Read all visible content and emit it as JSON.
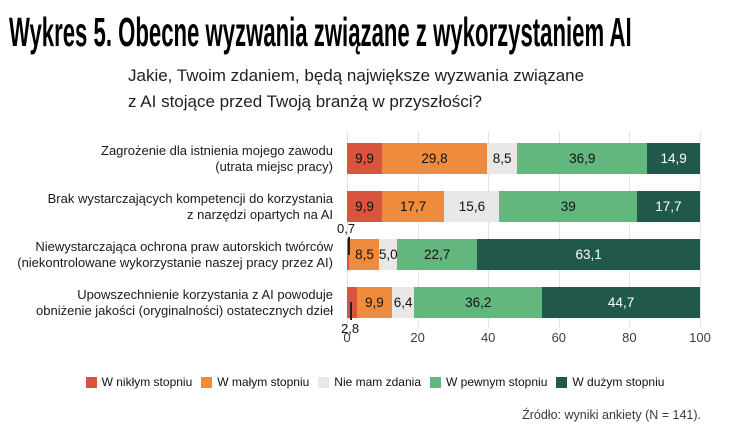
{
  "header": {
    "title": "Wykres 5. Obecne wyzwania związane z wykorzystaniem AI",
    "subtitle_line1": "Jakie, Twoim zdaniem, będą największe wyzwania związane",
    "subtitle_line2": "z AI stojące przed Twoją branżą w przyszłości?"
  },
  "chart_data": {
    "type": "bar",
    "variant": "horizontal-stacked-100-percent",
    "unit": "percent",
    "grid": true,
    "legend_position": "bottom",
    "x_axis": {
      "range": [
        0,
        100
      ],
      "ticks": [
        "0",
        "20",
        "40",
        "60",
        "80",
        "100"
      ]
    },
    "legend": [
      "W nikłym stopniu",
      "W małym stopniu",
      "Nie mam zdania",
      "W pewnym stopniu",
      "W dużym stopniu"
    ],
    "series_colors": [
      "#D8543E",
      "#EE8B3C",
      "#E8E8E7",
      "#63B77E",
      "#20594B"
    ],
    "segment_text_colors": [
      "#111111",
      "#111111",
      "#111111",
      "#111111",
      "#FFFFFF"
    ],
    "gridline_color": "#E3E3E3",
    "rows": [
      {
        "category_lines": [
          "Zagrożenie dla istnienia mojego zawodu",
          "(utrata miejsc pracy)"
        ],
        "values": [
          9.9,
          29.8,
          8.5,
          36.9,
          14.9
        ],
        "labels": [
          "9,9",
          "29,8",
          "8,5",
          "36,9",
          "14,9"
        ]
      },
      {
        "category_lines": [
          "Brak wystarczających kompetencji do korzystania",
          "z narzędzi opartych na AI"
        ],
        "values": [
          9.9,
          17.7,
          15.6,
          39,
          17.7
        ],
        "labels": [
          "9,9",
          "17,7",
          "15,6",
          "39",
          "17,7"
        ]
      },
      {
        "category_lines": [
          "Niewystarczająca ochrona praw autorskich twórców",
          "(niekontrolowane wykorzystanie naszej pracy przez AI)"
        ],
        "values": [
          0.7,
          8.5,
          5.0,
          22.7,
          63.1
        ],
        "labels": [
          "0,7",
          "8,5",
          "5,0",
          "22,7",
          "63,1"
        ],
        "callout": {
          "segment": 0,
          "position": "above"
        }
      },
      {
        "category_lines": [
          "Upowszechnienie korzystania z AI powoduje",
          "obniżenie jakości (oryginalności) ostatecznych dzieł"
        ],
        "values": [
          2.8,
          9.9,
          6.4,
          36.2,
          44.7
        ],
        "labels": [
          "2,8",
          "9,9",
          "6,4",
          "36,2",
          "44,7"
        ],
        "callout": {
          "segment": 0,
          "position": "below"
        }
      }
    ]
  },
  "footer": {
    "source": "Źródło: wyniki ankiety (N = 141)."
  }
}
